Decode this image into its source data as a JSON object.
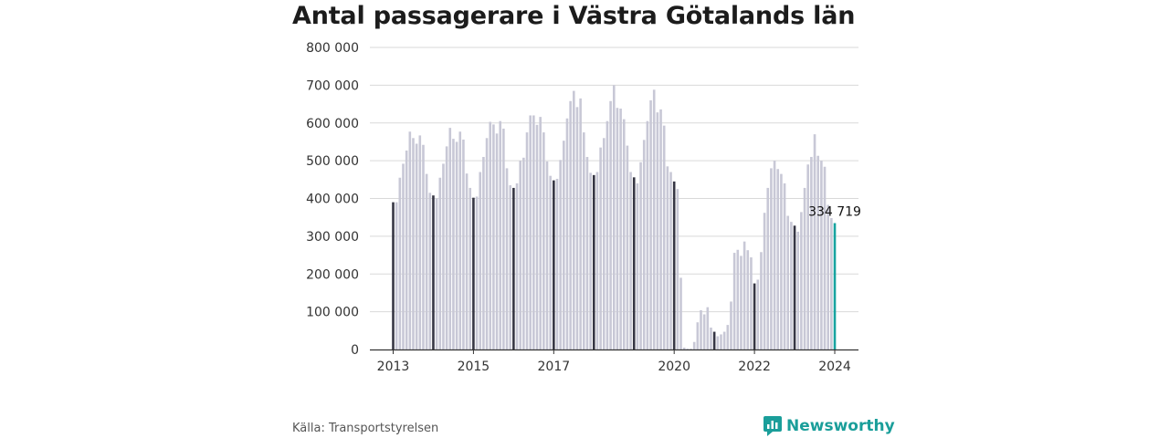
{
  "title": "Antal passagerare i Västra Götalands län",
  "source": "Källa: Transportstyrelsen",
  "brand": "Newsworthy",
  "colors": {
    "bar": "#c8c8d6",
    "january_bar": "#363644",
    "latest_bar": "#17a3a0",
    "brand": "#1a9e9a",
    "grid": "#d9d9d9"
  },
  "chart_data": {
    "type": "bar",
    "title": "Antal passagerare i Västra Götalands län",
    "xlabel": "",
    "ylabel": "",
    "ylim": [
      0,
      800000
    ],
    "yticks": [
      "0",
      "100 000",
      "200 000",
      "300 000",
      "400 000",
      "500 000",
      "600 000",
      "700 000",
      "800 000"
    ],
    "xtick_labels": [
      "2013",
      "2015",
      "2017",
      "2020",
      "2022",
      "2024"
    ],
    "start": "2013-01",
    "end": "2024-01",
    "frequency": "monthly",
    "highlight": "January of each year",
    "latest_label": "334 719",
    "values": [
      390000,
      390000,
      455000,
      492000,
      527000,
      577000,
      560000,
      545000,
      567000,
      542000,
      465000,
      415000,
      408000,
      400000,
      455000,
      492000,
      538000,
      587000,
      558000,
      550000,
      577000,
      556000,
      466000,
      428000,
      402000,
      405000,
      470000,
      510000,
      560000,
      603000,
      596000,
      572000,
      605000,
      585000,
      480000,
      435000,
      428000,
      440000,
      500000,
      508000,
      575000,
      620000,
      620000,
      595000,
      616000,
      575000,
      498000,
      460000,
      448000,
      452000,
      502000,
      553000,
      612000,
      658000,
      685000,
      642000,
      665000,
      575000,
      510000,
      468000,
      462000,
      470000,
      535000,
      560000,
      605000,
      658000,
      700000,
      640000,
      638000,
      610000,
      540000,
      470000,
      456000,
      440000,
      496000,
      555000,
      605000,
      660000,
      688000,
      628000,
      636000,
      593000,
      485000,
      470000,
      445000,
      425000,
      190000,
      5000,
      2000,
      2000,
      20000,
      72000,
      104000,
      93000,
      112000,
      58000,
      47000,
      35000,
      40000,
      47000,
      65000,
      127000,
      256000,
      264000,
      248000,
      286000,
      263000,
      244000,
      175000,
      185000,
      258000,
      362000,
      428000,
      480000,
      500000,
      478000,
      465000,
      440000,
      354000,
      338000,
      328000,
      312000,
      364000,
      428000,
      490000,
      510000,
      570000,
      513000,
      500000,
      484000,
      383000,
      348000,
      334719
    ]
  }
}
